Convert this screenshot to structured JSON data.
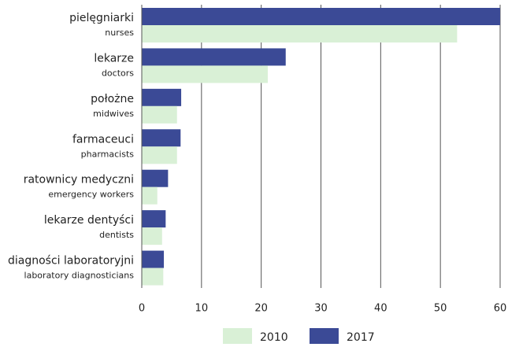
{
  "chart_data": {
    "type": "hbar",
    "categories": [
      "pielęgniarki",
      "lekarze",
      "położne",
      "farmaceuci",
      "ratownicy medyczni",
      "lekarze dentyści",
      "diagności laboratoryjni"
    ],
    "category_subtitles": [
      "nurses",
      "doctors",
      "midwives",
      "pharmacists",
      "emergency workers",
      "dentists",
      "laboratory diagnosticians"
    ],
    "series": [
      {
        "name": "2010",
        "color": "#d9f0d6",
        "values": [
          52.8,
          21.1,
          5.9,
          5.9,
          2.6,
          3.4,
          3.6
        ]
      },
      {
        "name": "2017",
        "color": "#3b4a96",
        "values": [
          60,
          24.1,
          6.6,
          6.5,
          4.4,
          4.0,
          3.7
        ]
      }
    ],
    "xlim": [
      0,
      60
    ],
    "xticks": [
      0,
      10,
      20,
      30,
      40,
      50,
      60
    ],
    "grid": true,
    "legend": "bottom"
  }
}
